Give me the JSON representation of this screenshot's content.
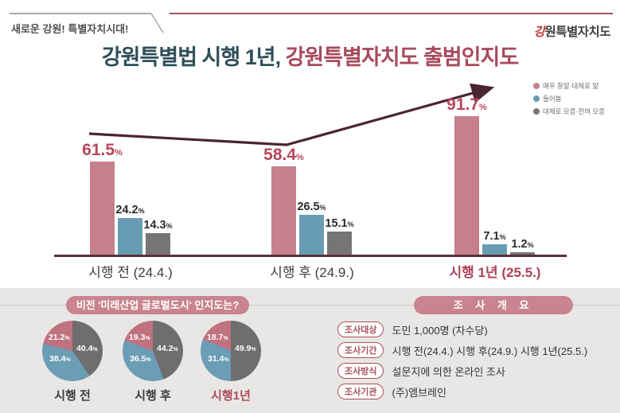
{
  "page": {
    "tagline": "새로운 강원! 특별자치시대!",
    "logo_first": "강",
    "logo_rest": "원특별자치도",
    "title_part1": "강원특별법 시행 1년, ",
    "title_part2": "강원특별자치도 출범인지도"
  },
  "colors": {
    "title_teal": "#2f4f5a",
    "title_red": "#a84a5c",
    "bar_pink": "#c5808c",
    "bar_blue": "#689cb3",
    "bar_gray": "#767474",
    "arrow": "#4a2530",
    "panel_bg": "#e9e7e6",
    "pill_bg": "#c9848f",
    "badge_red": "#a84f5e"
  },
  "chart_data": [
    {
      "type": "bar",
      "title": "강원특별법 시행 1년, 강원특별자치도 출범인지도",
      "unit": "%",
      "categories": [
        "시행 전 (24.4.)",
        "시행 후 (24.9.)",
        "시행 1년 (25.5.)"
      ],
      "series": [
        {
          "name": "매우 잘앎·대체로 앎",
          "color": "#c5808c",
          "values": [
            61.5,
            58.4,
            91.7
          ]
        },
        {
          "name": "들어봄",
          "color": "#689cb3",
          "values": [
            24.2,
            26.5,
            7.1
          ]
        },
        {
          "name": "대체로 모름·전혀 모름",
          "color": "#767474",
          "values": [
            14.3,
            15.1,
            1.2
          ]
        }
      ],
      "ylim": [
        0,
        100
      ],
      "grid": false,
      "legend_position": "top-right",
      "annotation": "상승 추세 화살표 (매우 잘앎·대체로 앎 61.5% → 58.4% → 91.7%)"
    },
    {
      "type": "pie",
      "title": "비전 '미래산업 글로벌도시' 인지도는?",
      "unit": "%",
      "pies": [
        {
          "label": "시행 전",
          "slices": [
            {
              "name": "대체로 모름·전혀 모름",
              "value": 40.4,
              "color": "#6f6e6e"
            },
            {
              "name": "들어봄",
              "value": 38.4,
              "color": "#6b9db5"
            },
            {
              "name": "매우 잘앎·대체로 앎",
              "value": 21.2,
              "color": "#c0727f"
            }
          ]
        },
        {
          "label": "시행 후",
          "slices": [
            {
              "name": "대체로 모름·전혀 모름",
              "value": 44.2,
              "color": "#6f6e6e"
            },
            {
              "name": "들어봄",
              "value": 36.5,
              "color": "#6b9db5"
            },
            {
              "name": "매우 잘앎·대체로 앎",
              "value": 19.3,
              "color": "#c0727f"
            }
          ]
        },
        {
          "label": "시행1년",
          "slices": [
            {
              "name": "대체로 모름·전혀 모름",
              "value": 49.9,
              "color": "#6f6e6e"
            },
            {
              "name": "들어봄",
              "value": 31.4,
              "color": "#6b9db5"
            },
            {
              "name": "매우 잘앎·대체로 앎",
              "value": 18.7,
              "color": "#c0727f"
            }
          ]
        }
      ]
    }
  ],
  "bottom": {
    "left_header": "비전 '미래산업 글로벌도시' 인지도는?",
    "right_header": "조 사 개 요",
    "survey": [
      {
        "label": "조사대상",
        "value": "도민 1,000명 (차수당)"
      },
      {
        "label": "조사기간",
        "value": "시행 전(24.4.) 시행 후(24.9.) 시행 1년(25.5.)"
      },
      {
        "label": "조사방식",
        "value": "설문지에 의한 온라인 조사"
      },
      {
        "label": "조사기관",
        "value": "(주)엠브레인"
      }
    ]
  }
}
